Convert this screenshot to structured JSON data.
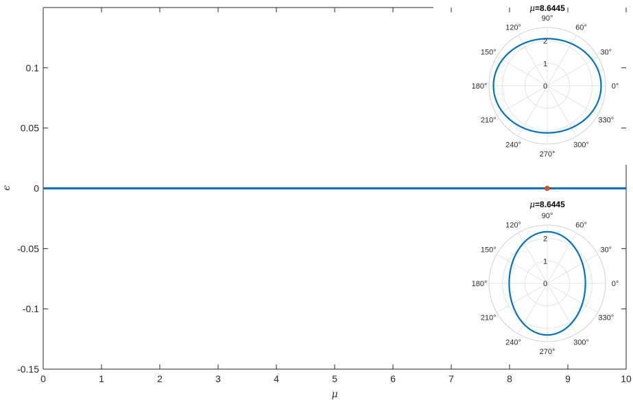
{
  "chart_data": [
    {
      "type": "line",
      "xlabel": "μ",
      "ylabel": "ϵ",
      "xlim": [
        0,
        10
      ],
      "ylim": [
        -0.15,
        0.15
      ],
      "xticks": [
        "0",
        "1",
        "2",
        "3",
        "4",
        "5",
        "6",
        "7",
        "8",
        "9",
        "10"
      ],
      "yticks": [
        "-0.15",
        "-0.1",
        "-0.05",
        "0",
        "0.05",
        "0.1"
      ],
      "series": [
        {
          "x": [
            0,
            10
          ],
          "y": [
            0,
            0
          ],
          "color": "#0072bd"
        }
      ],
      "marker": {
        "x": 8.6445,
        "y": 0,
        "color": "#d95319"
      },
      "colors": {
        "line": "#0072bd",
        "marker": "#d95319",
        "axis": "#262626"
      }
    },
    {
      "type": "line",
      "polar": true,
      "title_prefix": "μ",
      "title_value": "=8.6445",
      "rticks": [
        "0",
        "1",
        "2"
      ],
      "angle_labels": [
        "0°",
        "30°",
        "60°",
        "90°",
        "120°",
        "150°",
        "180°",
        "210°",
        "240°",
        "270°",
        "300°",
        "330°"
      ],
      "rlim": [
        0,
        2.6
      ],
      "curve": {
        "shape": "ellipse",
        "r_at_0deg": 2.4,
        "r_at_90deg": 2.1
      },
      "color": "#0072bd"
    },
    {
      "type": "line",
      "polar": true,
      "title_prefix": "μ",
      "title_value": "=8.6445",
      "rticks": [
        "0",
        "1",
        "2"
      ],
      "angle_labels": [
        "0°",
        "30°",
        "60°",
        "90°",
        "120°",
        "150°",
        "180°",
        "210°",
        "240°",
        "270°",
        "300°",
        "330°"
      ],
      "rlim": [
        0,
        2.6
      ],
      "curve": {
        "shape": "ellipse",
        "r_at_0deg": 1.7,
        "r_at_90deg": 2.3
      },
      "color": "#0072bd"
    }
  ]
}
